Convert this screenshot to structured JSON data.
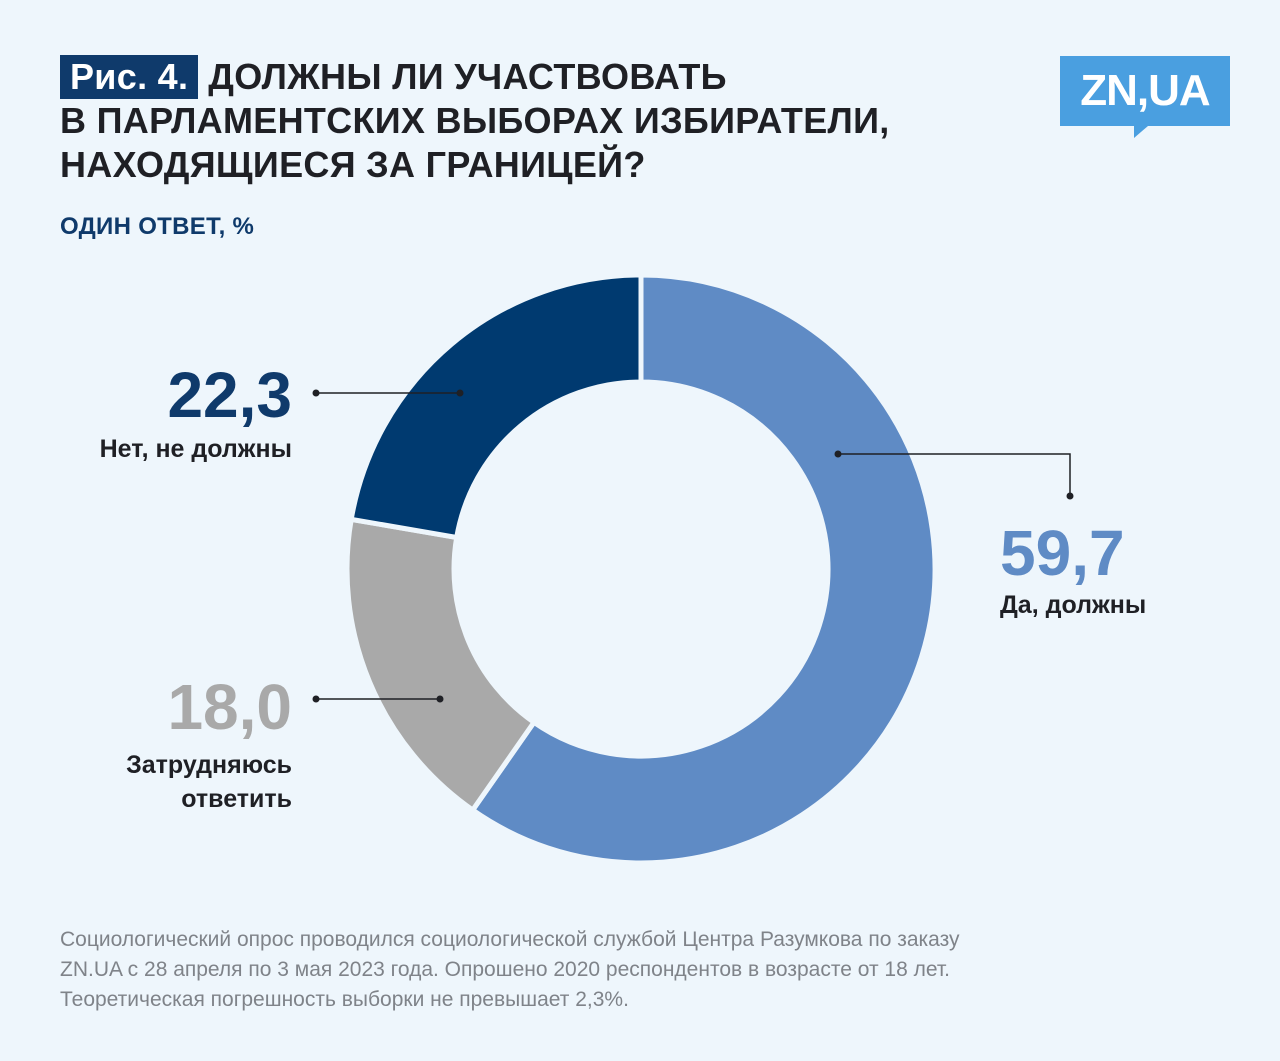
{
  "title": {
    "tag": "Рис. 4.",
    "line1": "ДОЛЖНЫ ЛИ УЧАСТВОВАТЬ",
    "line2": "В ПАРЛАМЕНТСКИХ ВЫБОРАХ ИЗБИРАТЕЛИ,",
    "line3": "НАХОДЯЩИЕСЯ ЗА ГРАНИЦЕЙ?"
  },
  "subtitle": "ОДИН ОТВЕТ, %",
  "logo": {
    "text": "ZN,UA",
    "color": "#4a9fe0"
  },
  "chart_data": {
    "type": "pie",
    "style": "donut",
    "unit": "%",
    "slices": [
      {
        "label": "Да, должны",
        "value_text": "59,7",
        "value": 59.7,
        "color": "#5f8bc5"
      },
      {
        "label": "Затрудняюсь ответить",
        "label_lines": [
          "Затрудняюсь",
          "ответить"
        ],
        "value_text": "18,0",
        "value": 18.0,
        "color": "#a9a9a9"
      },
      {
        "label": "Нет, не должны",
        "value_text": "22,3",
        "value": 22.3,
        "color": "#003a70"
      }
    ],
    "start_angle": "12 o'clock",
    "direction": "clockwise"
  },
  "footer": {
    "line1": "Социологический опрос проводился социологической службой Центра Разумкова по заказу",
    "line2": "ZN.UA с 28 апреля по 3 мая 2023 года. Опрошено 2020 респондентов в возрасте от 18 лет.",
    "line3": "Теоретическая погрешность выборки не превышает 2,3%."
  }
}
